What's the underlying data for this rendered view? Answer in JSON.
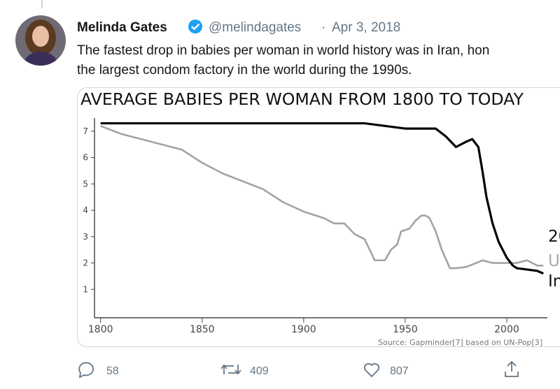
{
  "tweet": {
    "name": "Melinda Gates",
    "handle": "@melindagates",
    "separator": "·",
    "date": "Apr 3, 2018",
    "text": [
      "The fastest drop in babies per woman in world history was in Iran, hon",
      "the largest condom factory in the world during the 1990s."
    ],
    "replies": 58,
    "retweets": 409,
    "likes": 807
  },
  "chart_data": {
    "type": "line",
    "title": "AVERAGE BABIES PER WOMAN FROM 1800 TO TODAY",
    "source": "Source: Gapminder[7] based on UN-Pop[3]",
    "annotations": [
      "20",
      "U",
      "In"
    ],
    "xlim": [
      1797,
      2020
    ],
    "xticks": [
      1800,
      1850,
      1900,
      1950,
      2000
    ],
    "ylim": [
      0,
      7.5
    ],
    "yticks": [
      1,
      2,
      3,
      4,
      5,
      6,
      7
    ],
    "series": [
      {
        "color": "#a3a3a3",
        "x": [
          1800,
          1810,
          1825,
          1840,
          1850,
          1860,
          1870,
          1880,
          1890,
          1900,
          1910,
          1915,
          1920,
          1925,
          1930,
          1935,
          1940,
          1943,
          1946,
          1948,
          1952,
          1955,
          1958,
          1960,
          1962,
          1965,
          1968,
          1972,
          1975,
          1980,
          1985,
          1988,
          1993,
          2000,
          2005,
          2010,
          2015,
          2018
        ],
        "values": [
          7.2,
          6.9,
          6.6,
          6.3,
          5.8,
          5.4,
          5.1,
          4.8,
          4.3,
          3.95,
          3.7,
          3.5,
          3.5,
          3.1,
          2.9,
          2.1,
          2.1,
          2.5,
          2.7,
          3.2,
          3.3,
          3.6,
          3.8,
          3.8,
          3.7,
          3.2,
          2.5,
          1.8,
          1.8,
          1.85,
          2.0,
          2.1,
          2.0,
          2.0,
          2.0,
          2.1,
          1.9,
          1.9
        ]
      },
      {
        "color": "#000000",
        "x": [
          1800,
          1930,
          1950,
          1965,
          1970,
          1975,
          1980,
          1983,
          1986,
          1988,
          1990,
          1993,
          1996,
          2000,
          2003,
          2005,
          2010,
          2015,
          2018
        ],
        "values": [
          7.3,
          7.3,
          7.1,
          7.1,
          6.8,
          6.4,
          6.6,
          6.7,
          6.4,
          5.5,
          4.5,
          3.5,
          2.8,
          2.2,
          1.9,
          1.8,
          1.75,
          1.7,
          1.6
        ]
      }
    ]
  }
}
